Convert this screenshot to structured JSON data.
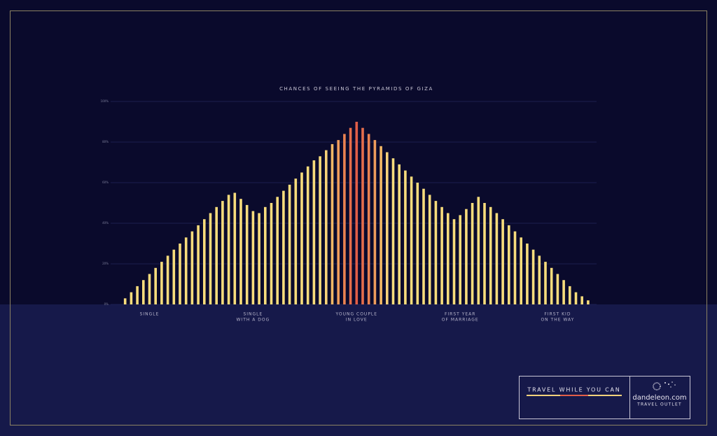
{
  "chart_data": {
    "type": "bar",
    "title": "CHANCES OF SEEING THE PYRAMIDS OF GIZA",
    "categories": [
      null,
      null,
      null,
      null,
      null,
      [
        "SINGLE"
      ],
      null,
      null,
      null,
      null,
      null,
      null,
      null,
      null,
      null,
      null,
      null,
      null,
      null,
      null,
      null,
      null,
      [
        "SINGLE",
        "WITH A DOG"
      ],
      null,
      null,
      null,
      null,
      null,
      null,
      null,
      null,
      null,
      null,
      null,
      null,
      null,
      null,
      null,
      null,
      [
        "YOUNG COUPLE",
        "IN LOVE"
      ],
      null,
      null,
      null,
      null,
      null,
      null,
      null,
      null,
      null,
      null,
      null,
      null,
      null,
      null,
      null,
      null,
      [
        "FIRST YEAR",
        "OF MARRIAGE"
      ],
      null,
      null,
      null,
      null,
      null,
      null,
      null,
      null,
      null,
      null,
      null,
      null,
      null,
      null,
      null,
      [
        "FIRST KID",
        "ON THE WAY"
      ],
      null,
      null,
      null,
      null,
      null,
      null
    ],
    "values": [
      0,
      3,
      6,
      9,
      12,
      15,
      18,
      21,
      24,
      27,
      30,
      33,
      36,
      39,
      42,
      45,
      48,
      51,
      54,
      55,
      52,
      49,
      46,
      45,
      48,
      50,
      53,
      56,
      59,
      62,
      65,
      68,
      71,
      73,
      76,
      79,
      81,
      84,
      87,
      90,
      87,
      84,
      81,
      78,
      75,
      72,
      69,
      66,
      63,
      60,
      57,
      54,
      51,
      48,
      45,
      42,
      44,
      47,
      50,
      53,
      50,
      48,
      45,
      42,
      39,
      36,
      33,
      30,
      27,
      24,
      21,
      18,
      15,
      12,
      9,
      6,
      4,
      2,
      0
    ],
    "colors": [
      "#f7dc7c",
      "#f7dc7c",
      "#f7dc7c",
      "#f7dc7c",
      "#f7dc7c",
      "#f7dc7c",
      "#f7dc7c",
      "#f7dc7c",
      "#f7dc7c",
      "#f7dc7c",
      "#f7dc7c",
      "#f7dc7c",
      "#f7dc7c",
      "#f7dc7c",
      "#f7dc7c",
      "#f7dc7c",
      "#f7dc7c",
      "#f7dc7c",
      "#f7dc7c",
      "#f7dc7c",
      "#f7dc7c",
      "#f7dc7c",
      "#f7dc7c",
      "#f7dc7c",
      "#f7dc7c",
      "#f7dc7c",
      "#f7dc7c",
      "#f7dc7c",
      "#f7dc7c",
      "#f7dc7c",
      "#f7dc7c",
      "#f7dc7c",
      "#f7dc7c",
      "#f7dc7c",
      "#f7d27a",
      "#f2b866",
      "#ee9c5c",
      "#ea8252",
      "#e66e4c",
      "#e25e48",
      "#e66e4c",
      "#ea8252",
      "#ee9c5c",
      "#f2b866",
      "#f7d27a",
      "#f7dc7c",
      "#f7dc7c",
      "#f7dc7c",
      "#f7dc7c",
      "#f7dc7c",
      "#f7dc7c",
      "#f7dc7c",
      "#f7dc7c",
      "#f7dc7c",
      "#f7dc7c",
      "#f7dc7c",
      "#f7dc7c",
      "#f7dc7c",
      "#f7dc7c",
      "#f7dc7c",
      "#f7dc7c",
      "#f7dc7c",
      "#f7dc7c",
      "#f7dc7c",
      "#f7dc7c",
      "#f7dc7c",
      "#f7dc7c",
      "#f7dc7c",
      "#f7dc7c",
      "#f7dc7c",
      "#f7dc7c",
      "#f7dc7c",
      "#f7dc7c",
      "#f7dc7c",
      "#f7dc7c",
      "#f7dc7c",
      "#f7dc7c",
      "#f7dc7c",
      "#f7dc7c"
    ],
    "ylim": [
      0,
      100
    ],
    "yticks": [
      {
        "value": 0,
        "label": "0%"
      },
      {
        "value": 20,
        "label": "20%"
      },
      {
        "value": 40,
        "label": "40%"
      },
      {
        "value": 60,
        "label": "60%"
      },
      {
        "value": 80,
        "label": "80%"
      },
      {
        "value": 100,
        "label": "100%"
      }
    ],
    "grid": true
  },
  "ad": {
    "tagline": "TRAVEL WHILE YOU CAN",
    "brand": "dandeleon.com",
    "brand_sub": "TRAVEL OUTLET"
  }
}
